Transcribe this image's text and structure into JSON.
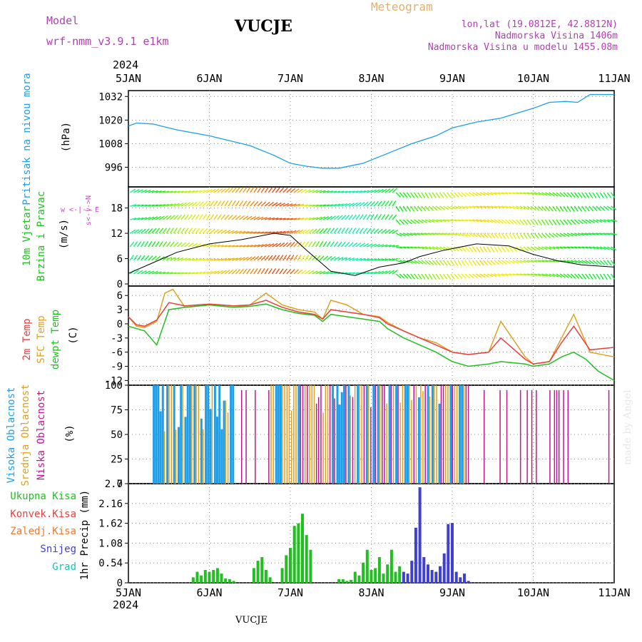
{
  "header": {
    "model_label": "Model",
    "model_name": "wrf-nmm_v3.9.1 e1km",
    "station": "VUCJE",
    "meteogram_label": "Meteogram",
    "lonlat": "lon,lat (19.0812E, 42.8812N)",
    "altitude": "Nadmorska Visina 1406m",
    "model_altitude": "Nadmorska Visina u modelu 1455.08m",
    "year": "2024",
    "footer_station": "VUCJE",
    "credit": "made by Angel"
  },
  "colors": {
    "pressure": "#1e9fe8",
    "sfc": "#e0a020",
    "t2m": "#e8403c",
    "dew": "#20c020",
    "high": "#1e9fe8",
    "mid": "#e0a020",
    "low": "#c01890",
    "total": "#20c020",
    "snow": "#4040d0",
    "grad": "#20c0b0"
  },
  "time_axis": {
    "ticks": [
      "5JAN",
      "6JAN",
      "7JAN",
      "8JAN",
      "9JAN",
      "10JAN",
      "11JAN"
    ],
    "range_days": [
      0,
      6
    ]
  },
  "chart_data": [
    {
      "type": "line",
      "name": "pressure",
      "ylabel": "Pritisak na nivou mora",
      "unit": "(hPa)",
      "yticks": [
        "996",
        "1008",
        "1020",
        "1032"
      ],
      "ylim": [
        986,
        1035
      ],
      "series": [
        {
          "x": [
            0,
            0.1,
            0.3,
            0.6,
            1.0,
            1.5,
            1.8,
            2.0,
            2.2,
            2.4,
            2.6,
            2.9,
            3.2,
            3.5,
            3.8,
            4.0,
            4.3,
            4.6,
            5.0,
            5.2,
            5.4,
            5.55,
            5.7,
            6.0
          ],
          "y": [
            1017,
            1018.5,
            1018,
            1015,
            1012,
            1007,
            1002,
            998,
            996.5,
            995.5,
            995.5,
            998,
            1003,
            1008,
            1012,
            1016,
            1019,
            1021,
            1026,
            1029,
            1029.5,
            1029,
            1033,
            1033
          ]
        }
      ]
    },
    {
      "type": "line",
      "name": "wind",
      "ylabel": "10m Vjetar",
      "ylabel2": "Brzina i Pravac",
      "unit": "(m/s)",
      "yticks": [
        "0",
        "6",
        "12",
        "18"
      ],
      "ylim": [
        -0.5,
        23
      ],
      "compass": "w <-|-> E",
      "compass_v": "s<-|->N",
      "series": [
        {
          "name": "speed",
          "x": [
            0,
            0.3,
            0.6,
            1.0,
            1.4,
            1.8,
            2.0,
            2.2,
            2.5,
            2.8,
            3.1,
            3.4,
            3.6,
            3.9,
            4.3,
            4.7,
            5.0,
            5.3,
            5.6,
            6.0
          ],
          "y": [
            2.5,
            5,
            7.5,
            9.5,
            10.5,
            12,
            11.5,
            8,
            3,
            2,
            4,
            5,
            6.5,
            8,
            9.5,
            9,
            7,
            5.5,
            4.5,
            4
          ]
        }
      ]
    },
    {
      "type": "line",
      "name": "temperature",
      "ylabel": "2m Temp",
      "ylabel2": "SFC Temp",
      "ylabel3": "dewpt Temp",
      "unit": "(C)",
      "yticks": [
        "6",
        "3",
        "0",
        "-3",
        "-6",
        "-9",
        "-12"
      ],
      "ylim": [
        -13,
        8
      ],
      "series": [
        {
          "name": "SFC Temp",
          "x": [
            0,
            0.1,
            0.2,
            0.35,
            0.45,
            0.55,
            0.7,
            1.0,
            1.3,
            1.5,
            1.7,
            1.9,
            2.1,
            2.3,
            2.4,
            2.5,
            2.7,
            2.9,
            3.1,
            3.2,
            3.4,
            3.6,
            3.8,
            4.0,
            4.2,
            4.45,
            4.6,
            4.9,
            5.0,
            5.2,
            5.35,
            5.5,
            5.7,
            6.0
          ],
          "y": [
            1.5,
            -0.5,
            -0.8,
            0.5,
            6.5,
            7.3,
            3.5,
            4,
            3.5,
            4,
            6.5,
            4,
            3,
            2.5,
            1,
            5,
            4,
            2,
            1.5,
            0.3,
            -1.5,
            -3,
            -4,
            -6,
            -6.5,
            -6,
            0.5,
            -7,
            -8.5,
            -8,
            -3,
            2,
            -6,
            -7
          ]
        },
        {
          "name": "2m Temp",
          "x": [
            0,
            0.1,
            0.2,
            0.35,
            0.5,
            0.7,
            1.0,
            1.3,
            1.5,
            1.7,
            1.9,
            2.1,
            2.3,
            2.4,
            2.5,
            2.7,
            2.9,
            3.1,
            3.2,
            3.4,
            3.6,
            3.8,
            4.0,
            4.2,
            4.45,
            4.6,
            4.9,
            5.0,
            5.2,
            5.35,
            5.5,
            5.7,
            6.0
          ],
          "y": [
            1.5,
            -0.2,
            -0.5,
            0.8,
            4.5,
            3.8,
            4.2,
            3.8,
            4,
            5,
            3.5,
            2.5,
            2,
            1,
            3,
            2.5,
            2,
            1.3,
            0,
            -1.5,
            -3,
            -4.5,
            -6,
            -6.5,
            -6,
            -3,
            -7.5,
            -8.5,
            -8,
            -4,
            -0.5,
            -5.5,
            -5
          ]
        },
        {
          "name": "dewpt Temp",
          "x": [
            0,
            0.2,
            0.35,
            0.5,
            0.7,
            1.0,
            1.3,
            1.5,
            1.7,
            1.9,
            2.1,
            2.3,
            2.4,
            2.5,
            2.7,
            2.9,
            3.1,
            3.2,
            3.4,
            3.6,
            3.8,
            4.0,
            4.2,
            4.45,
            4.6,
            4.9,
            5.0,
            5.2,
            5.35,
            5.5,
            5.65,
            5.8,
            6.0
          ],
          "y": [
            -0.5,
            -1.5,
            -4.5,
            3,
            3.5,
            4,
            3.5,
            3.7,
            4.2,
            3,
            2.2,
            1.8,
            0.5,
            2,
            1.5,
            1,
            0.5,
            -1,
            -3,
            -4.5,
            -6,
            -8,
            -9,
            -8.5,
            -8,
            -8.5,
            -9,
            -8.5,
            -7,
            -6,
            -7.5,
            -10,
            -12
          ]
        }
      ]
    },
    {
      "type": "bar",
      "name": "cloud",
      "ylabel": "Visoka Oblacnost",
      "ylabel2": "Srednja Oblacnost",
      "ylabel3": "Niska Oblacnost",
      "unit": "(%)",
      "yticks": [
        "0",
        "25",
        "50",
        "75",
        "100"
      ],
      "ylim": [
        0,
        100
      ]
    },
    {
      "type": "bar",
      "name": "precip",
      "ylabel": "1hr Precip (mm)",
      "yticks": [
        "0",
        "0.54",
        "1.08",
        "1.62",
        "2.16",
        "2.7"
      ],
      "ylim": [
        0,
        2.7
      ],
      "legend": [
        "Ukupna Kisa",
        "Konvek.Kisa",
        "Zaledj.Kisa",
        "Snijeg",
        "Grad"
      ],
      "series": [
        {
          "name": "total",
          "x": [
            0.8,
            0.85,
            0.9,
            0.95,
            1.0,
            1.05,
            1.1,
            1.15,
            1.2,
            1.25,
            1.3,
            1.55,
            1.6,
            1.65,
            1.7,
            1.75,
            1.9,
            1.95,
            2.0,
            2.05,
            2.1,
            2.15,
            2.2,
            2.25,
            2.6,
            2.65,
            2.7,
            2.75,
            2.8,
            2.85,
            2.9,
            2.95,
            3.0,
            3.05,
            3.1,
            3.15,
            3.2,
            3.25,
            3.3,
            3.35
          ],
          "y": [
            0.15,
            0.3,
            0.2,
            0.35,
            0.3,
            0.35,
            0.4,
            0.25,
            0.12,
            0.1,
            0.05,
            0.4,
            0.6,
            0.7,
            0.35,
            0.15,
            0.4,
            0.75,
            0.95,
            1.55,
            1.62,
            1.88,
            1.3,
            0.9,
            0.1,
            0.1,
            0.05,
            0.08,
            0.3,
            0.2,
            0.55,
            0.9,
            0.35,
            0.4,
            0.7,
            0.25,
            0.5,
            0.9,
            0.3,
            0.45
          ]
        },
        {
          "name": "snow",
          "x": [
            3.4,
            3.45,
            3.5,
            3.55,
            3.6,
            3.65,
            3.7,
            3.75,
            3.8,
            3.85,
            3.9,
            3.95,
            4.0,
            4.05,
            4.1,
            4.15,
            4.2
          ],
          "y": [
            0.3,
            0.25,
            0.6,
            1.5,
            2.6,
            0.7,
            0.5,
            0.35,
            0.3,
            0.45,
            0.8,
            1.6,
            1.63,
            0.3,
            0.15,
            0.25,
            0.05
          ]
        }
      ]
    }
  ]
}
